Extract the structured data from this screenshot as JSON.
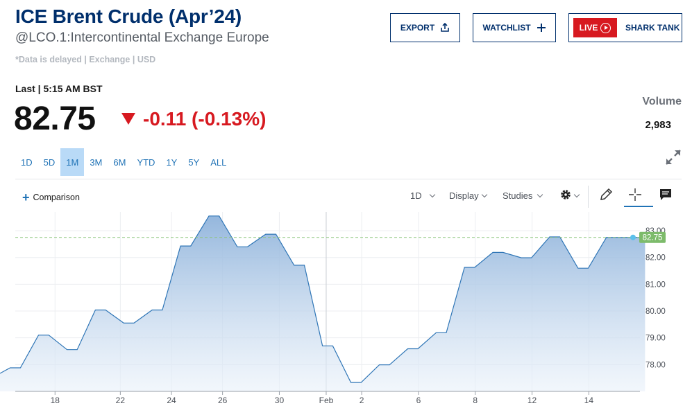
{
  "header": {
    "title": "ICE Brent Crude (Apr’24)",
    "subtitle": "@LCO.1:Intercontinental Exchange Europe",
    "delayed_note": "*Data is delayed | Exchange | USD"
  },
  "buttons": {
    "export": "EXPORT",
    "watchlist": "WATCHLIST",
    "live": "LIVE",
    "shark_tank": "SHARK TANK"
  },
  "quote": {
    "last_label": "Last | 5:15 AM BST",
    "price": "82.75",
    "change": "-0.11 (-0.13%)",
    "volume_label": "Volume",
    "volume_value": "2,983"
  },
  "ranges": [
    "1D",
    "5D",
    "1M",
    "3M",
    "6M",
    "YTD",
    "1Y",
    "5Y",
    "ALL"
  ],
  "active_range": "1M",
  "toolbar": {
    "comparison": "Comparison",
    "interval": "1D",
    "display": "Display",
    "studies": "Studies"
  },
  "icons": {
    "export": "share-icon",
    "watchlist": "plus-icon",
    "live": "play-circle-icon",
    "expand": "expand-arrows-icon",
    "settings": "gear-icon",
    "draw": "pencil-icon",
    "crosshair": "crosshair-icon",
    "comment": "comment-icon"
  },
  "colors": {
    "brand": "#002f6c",
    "negative": "#d71920",
    "line": "#2e75b6",
    "last_price_badge": "#7dbb6b",
    "active_range_bg": "#b9daf7"
  },
  "chart_data": {
    "type": "area",
    "x": [
      "Jan 16",
      "Jan 17",
      "Jan 18",
      "Jan 19",
      "Jan 22",
      "Jan 23",
      "Jan 24",
      "Jan 25",
      "Jan 26",
      "Jan 29",
      "Jan 30",
      "Jan 31",
      "Feb 1",
      "Feb 2",
      "Feb 5",
      "Feb 6",
      "Feb 7",
      "Feb 8",
      "Feb 9",
      "Feb 12",
      "Feb 13",
      "Feb 14",
      "Feb 15"
    ],
    "values": [
      77.88,
      79.1,
      78.56,
      80.04,
      79.55,
      80.04,
      82.43,
      83.55,
      82.4,
      82.87,
      81.71,
      78.7,
      77.33,
      77.99,
      78.59,
      79.19,
      81.63,
      82.19,
      81.99,
      82.77,
      81.6,
      82.75,
      82.75
    ],
    "x_tick_labels": [
      "18",
      "22",
      "24",
      "26",
      "30",
      "Feb",
      "2",
      "6",
      "8",
      "12",
      "14"
    ],
    "y_tick_labels": [
      "83.00",
      "82.00",
      "81.00",
      "80.00",
      "79.00",
      "78.00"
    ],
    "ylim": [
      77.0,
      83.7
    ],
    "last_price": "82.75",
    "grid": true
  }
}
